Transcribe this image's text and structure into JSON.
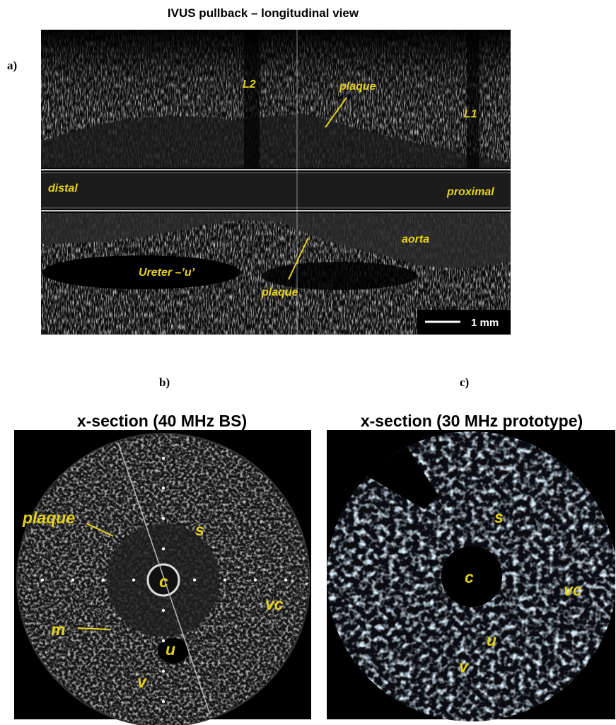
{
  "title": "IVUS pullback – longitudinal view",
  "panel_a": {
    "label": "a)",
    "annotations": [
      "L2",
      "plaque",
      "L1",
      "distal",
      "proximal",
      "aorta",
      "Ureter –’u’",
      "plaque"
    ],
    "scale_bar": "1 mm"
  },
  "panel_b": {
    "label": "b)",
    "title": "x-section (40 MHz BS)",
    "annotations": [
      "plaque",
      "s",
      "c",
      "vc",
      "m",
      "u",
      "v"
    ]
  },
  "panel_c": {
    "label": "c)",
    "title": "x-section (30 MHz prototype)",
    "annotations": [
      "s",
      "c",
      "vc",
      "u",
      "v"
    ]
  }
}
